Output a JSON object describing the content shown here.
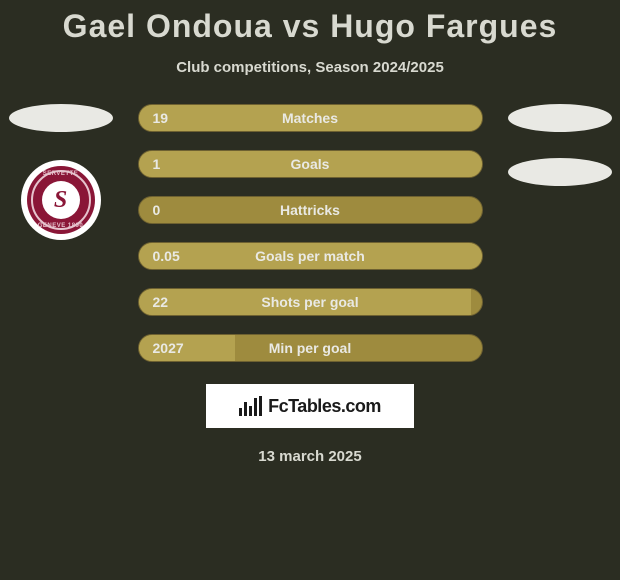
{
  "title": "Gael Ondoua vs Hugo Fargues",
  "subtitle": "Club competitions, Season 2024/2025",
  "date": "13 march 2025",
  "fctables_label": "FcTables.com",
  "colors": {
    "background": "#2b2d22",
    "bar_bg": "#9e8b3e",
    "bar_fill": "#b4a250",
    "bar_border": "#6e6131",
    "text_light": "#e9e9e4",
    "oval": "#e9e9e4",
    "badge_bg": "#8a1637",
    "white": "#ffffff"
  },
  "left_club": {
    "name": "Servette FC",
    "letter": "S",
    "ring_top": "SERVETTE",
    "ring_bottom": "GENEVE 1890"
  },
  "stats": [
    {
      "label": "Matches",
      "left_val": "19",
      "left_pct": 100
    },
    {
      "label": "Goals",
      "left_val": "1",
      "left_pct": 100
    },
    {
      "label": "Hattricks",
      "left_val": "0",
      "left_pct": 0
    },
    {
      "label": "Goals per match",
      "left_val": "0.05",
      "left_pct": 100
    },
    {
      "label": "Shots per goal",
      "left_val": "22",
      "left_pct": 97
    },
    {
      "label": "Min per goal",
      "left_val": "2027",
      "left_pct": 28
    }
  ]
}
